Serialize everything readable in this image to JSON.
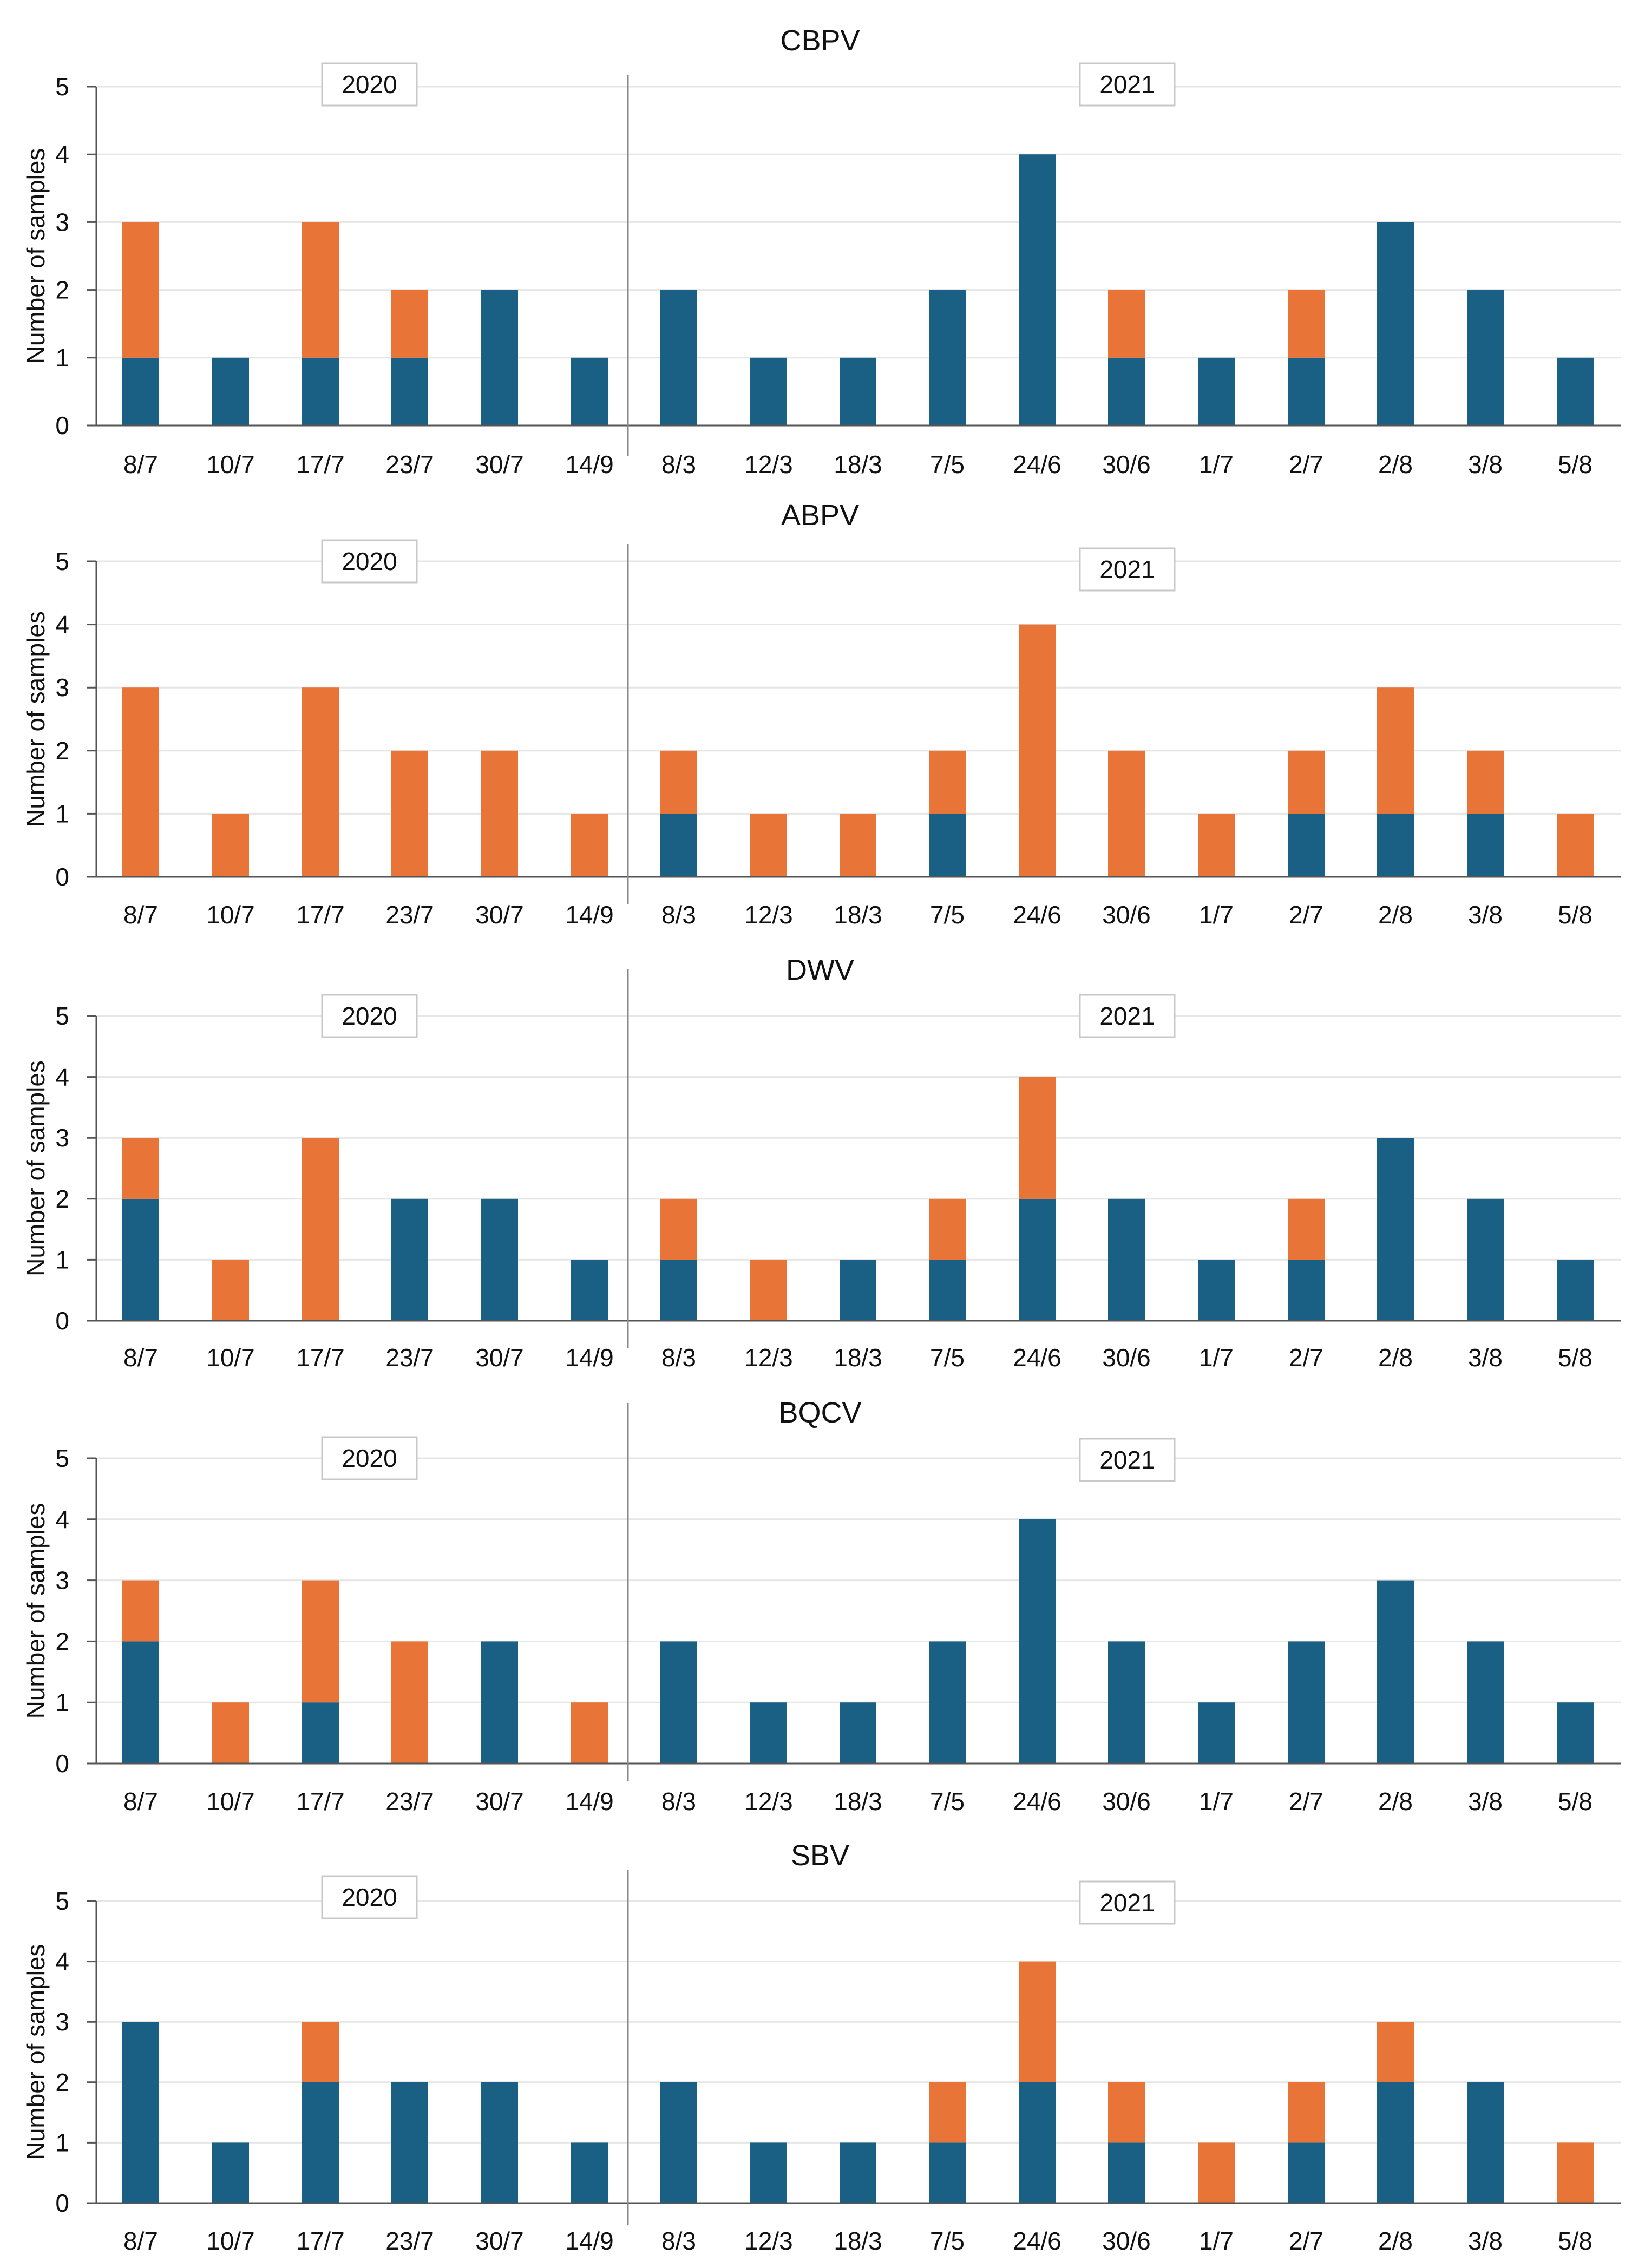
{
  "colors": {
    "blue": "#1a5f84",
    "orange": "#e97437",
    "axis": "#555555",
    "grid": "#e6e6e6"
  },
  "legend": {
    "year_2020": "2020",
    "year_2021": "2021"
  },
  "chart_data": [
    {
      "type": "bar",
      "stacked": true,
      "title": "CBPV",
      "ylabel": "Number of samples",
      "ylim": [
        0,
        5
      ],
      "yticks": [
        0,
        1,
        2,
        3,
        4,
        5
      ],
      "categories": [
        "8/7",
        "10/7",
        "17/7",
        "23/7",
        "30/7",
        "14/9",
        "8/3",
        "12/3",
        "18/3",
        "7/5",
        "24/6",
        "30/6",
        "1/7",
        "2/7",
        "2/8",
        "3/8",
        "5/8"
      ],
      "series": [
        {
          "name": "blue",
          "values": [
            1,
            1,
            1,
            1,
            2,
            1,
            2,
            1,
            1,
            2,
            4,
            1,
            1,
            1,
            3,
            2,
            1
          ]
        },
        {
          "name": "orange",
          "values": [
            2,
            0,
            2,
            1,
            0,
            0,
            0,
            0,
            0,
            0,
            0,
            1,
            0,
            1,
            0,
            0,
            0
          ]
        }
      ]
    },
    {
      "type": "bar",
      "stacked": true,
      "title": "ABPV",
      "ylabel": "Number of samples",
      "ylim": [
        0,
        5
      ],
      "yticks": [
        0,
        1,
        2,
        3,
        4,
        5
      ],
      "categories": [
        "8/7",
        "10/7",
        "17/7",
        "23/7",
        "30/7",
        "14/9",
        "8/3",
        "12/3",
        "18/3",
        "7/5",
        "24/6",
        "30/6",
        "1/7",
        "2/7",
        "2/8",
        "3/8",
        "5/8"
      ],
      "series": [
        {
          "name": "blue",
          "values": [
            0,
            0,
            0,
            0,
            0,
            0,
            1,
            0,
            0,
            1,
            0,
            0,
            0,
            1,
            1,
            1,
            0
          ]
        },
        {
          "name": "orange",
          "values": [
            3,
            1,
            3,
            2,
            2,
            1,
            1,
            1,
            1,
            1,
            4,
            2,
            1,
            1,
            2,
            1,
            1
          ]
        }
      ]
    },
    {
      "type": "bar",
      "stacked": true,
      "title": "DWV",
      "ylabel": "Number of samples",
      "ylim": [
        0,
        5
      ],
      "yticks": [
        0,
        1,
        2,
        3,
        4,
        5
      ],
      "categories": [
        "8/7",
        "10/7",
        "17/7",
        "23/7",
        "30/7",
        "14/9",
        "8/3",
        "12/3",
        "18/3",
        "7/5",
        "24/6",
        "30/6",
        "1/7",
        "2/7",
        "2/8",
        "3/8",
        "5/8"
      ],
      "series": [
        {
          "name": "blue",
          "values": [
            2,
            0,
            0,
            2,
            2,
            1,
            1,
            0,
            1,
            1,
            2,
            2,
            1,
            1,
            3,
            2,
            1
          ]
        },
        {
          "name": "orange",
          "values": [
            1,
            1,
            3,
            0,
            0,
            0,
            1,
            1,
            0,
            1,
            2,
            0,
            0,
            1,
            0,
            0,
            0
          ]
        }
      ]
    },
    {
      "type": "bar",
      "stacked": true,
      "title": "BQCV",
      "ylabel": "Number of samples",
      "ylim": [
        0,
        5
      ],
      "yticks": [
        0,
        1,
        2,
        3,
        4,
        5
      ],
      "categories": [
        "8/7",
        "10/7",
        "17/7",
        "23/7",
        "30/7",
        "14/9",
        "8/3",
        "12/3",
        "18/3",
        "7/5",
        "24/6",
        "30/6",
        "1/7",
        "2/7",
        "2/8",
        "3/8",
        "5/8"
      ],
      "series": [
        {
          "name": "blue",
          "values": [
            2,
            0,
            1,
            0,
            2,
            0,
            2,
            1,
            1,
            2,
            4,
            2,
            1,
            2,
            3,
            2,
            1
          ]
        },
        {
          "name": "orange",
          "values": [
            1,
            1,
            2,
            2,
            0,
            1,
            0,
            0,
            0,
            0,
            0,
            0,
            0,
            0,
            0,
            0,
            0
          ]
        }
      ]
    },
    {
      "type": "bar",
      "stacked": true,
      "title": "SBV",
      "ylabel": "Number of samples",
      "ylim": [
        0,
        5
      ],
      "yticks": [
        0,
        1,
        2,
        3,
        4,
        5
      ],
      "categories": [
        "8/7",
        "10/7",
        "17/7",
        "23/7",
        "30/7",
        "14/9",
        "8/3",
        "12/3",
        "18/3",
        "7/5",
        "24/6",
        "30/6",
        "1/7",
        "2/7",
        "2/8",
        "3/8",
        "5/8"
      ],
      "series": [
        {
          "name": "blue",
          "values": [
            3,
            1,
            2,
            2,
            2,
            1,
            2,
            1,
            1,
            1,
            2,
            1,
            0,
            1,
            2,
            2,
            0
          ]
        },
        {
          "name": "orange",
          "values": [
            0,
            0,
            1,
            0,
            0,
            0,
            0,
            0,
            0,
            1,
            2,
            1,
            1,
            1,
            1,
            0,
            1
          ]
        }
      ]
    }
  ]
}
